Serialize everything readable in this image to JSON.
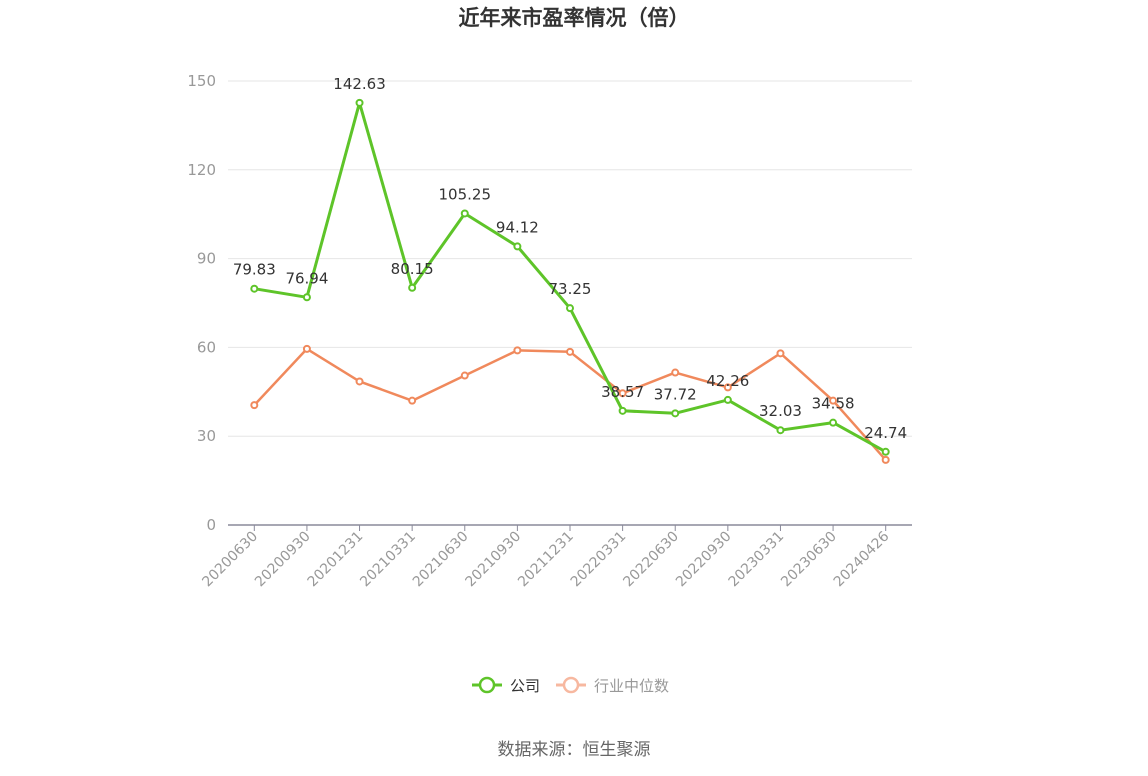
{
  "chart_data": {
    "type": "line",
    "title": "近年来市盈率情况（倍）",
    "source": "数据来源：恒生聚源",
    "categories": [
      "20200630",
      "20200930",
      "20201231",
      "20210331",
      "20210630",
      "20210930",
      "20211231",
      "20220331",
      "20220630",
      "20220930",
      "20230331",
      "20230630",
      "20240426"
    ],
    "y_ticks": [
      0,
      30,
      60,
      90,
      120,
      150
    ],
    "ylim": [
      0,
      150
    ],
    "grid": true,
    "legend_position": "bottom",
    "series": [
      {
        "name": "公司",
        "color": "#5ec429",
        "values": [
          79.83,
          76.94,
          142.63,
          80.15,
          105.25,
          94.12,
          73.25,
          38.57,
          37.72,
          42.26,
          32.03,
          34.58,
          24.74
        ],
        "labels": [
          "79.83",
          "76.94",
          "142.63",
          "80.15",
          "105.25",
          "94.12",
          "73.25",
          "38.57",
          "37.72",
          "42.26",
          "32.03",
          "34.58",
          "24.74"
        ]
      },
      {
        "name": "行业中位数",
        "color": "#f0895c",
        "legend_color": "#f7b8a0",
        "values": [
          40.5,
          59.5,
          48.5,
          42,
          50.5,
          59,
          58.5,
          44.5,
          51.5,
          46.5,
          58,
          42,
          22
        ]
      }
    ]
  }
}
